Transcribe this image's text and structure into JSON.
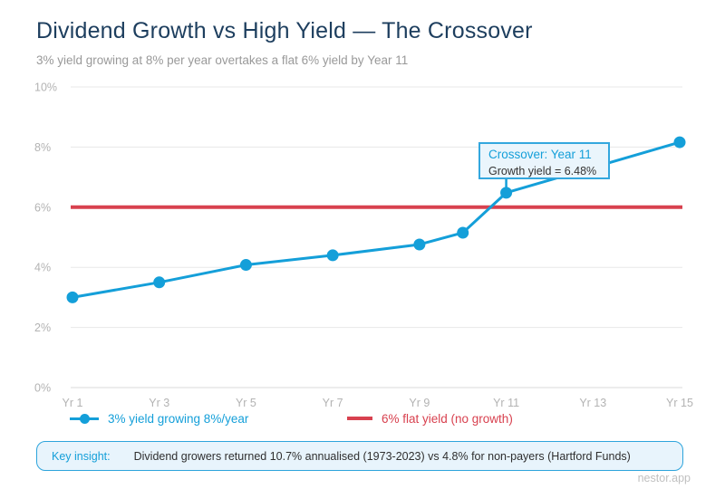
{
  "title": "Dividend Growth vs High Yield — The Crossover",
  "subtitle": "3% yield growing at 8% per year overtakes a flat 6% yield by Year 11",
  "watermark": "nestor.app",
  "insight": {
    "label": "Key insight:",
    "text": "Dividend growers returned 10.7% annualised (1973-2023) vs 4.8% for non-payers (Hartford Funds)"
  },
  "colors": {
    "title": "#1d3e5e",
    "subtitle": "#999999",
    "growth_blue": "#149fd9",
    "flat_red": "#d8414f",
    "grid": "#e8e8e8",
    "zero_line": "#d9d9d9",
    "tick_label": "#b3b3b3",
    "annotation_fill": "#eaf5fc",
    "annotation_border": "#33a7de",
    "insight_fill": "#e8f4fc",
    "insight_border": "#2da4dc",
    "dark_text": "#333333",
    "watermark": "#c0c0c0"
  },
  "chart_data": {
    "type": "line",
    "title": "Dividend Growth vs High Yield — The Crossover",
    "xlabel": "",
    "ylabel": "",
    "xlim": [
      1,
      15
    ],
    "ylim": [
      0,
      10
    ],
    "grid": true,
    "legend_position": "bottom",
    "x_tick_years": [
      1,
      3,
      5,
      7,
      9,
      11,
      13,
      15
    ],
    "x_tick_labels": [
      "Yr 1",
      "Yr 3",
      "Yr 5",
      "Yr 7",
      "Yr 9",
      "Yr 11",
      "Yr 13",
      "Yr 15"
    ],
    "y_tick_values": [
      0,
      2,
      4,
      6,
      8,
      10
    ],
    "y_tick_labels": [
      "0%",
      "2%",
      "4%",
      "6%",
      "8%",
      "10%"
    ],
    "series": [
      {
        "name": "3% yield growing 8%/year",
        "color": "#149fd9",
        "marker": "circle",
        "x": [
          1,
          3,
          5,
          7,
          9,
          10,
          11,
          15
        ],
        "values": [
          3.0,
          3.5,
          4.08,
          4.4,
          4.76,
          5.15,
          6.48,
          8.16
        ]
      },
      {
        "name": "6% flat yield (no growth)",
        "color": "#d8414f",
        "marker": "none",
        "x": [
          1,
          15
        ],
        "values": [
          6,
          6
        ]
      }
    ],
    "annotation": {
      "title": "Crossover: Year 11",
      "detail": "Growth yield = 6.48%",
      "anchor_year": 11,
      "anchor_value": 6.48
    }
  }
}
